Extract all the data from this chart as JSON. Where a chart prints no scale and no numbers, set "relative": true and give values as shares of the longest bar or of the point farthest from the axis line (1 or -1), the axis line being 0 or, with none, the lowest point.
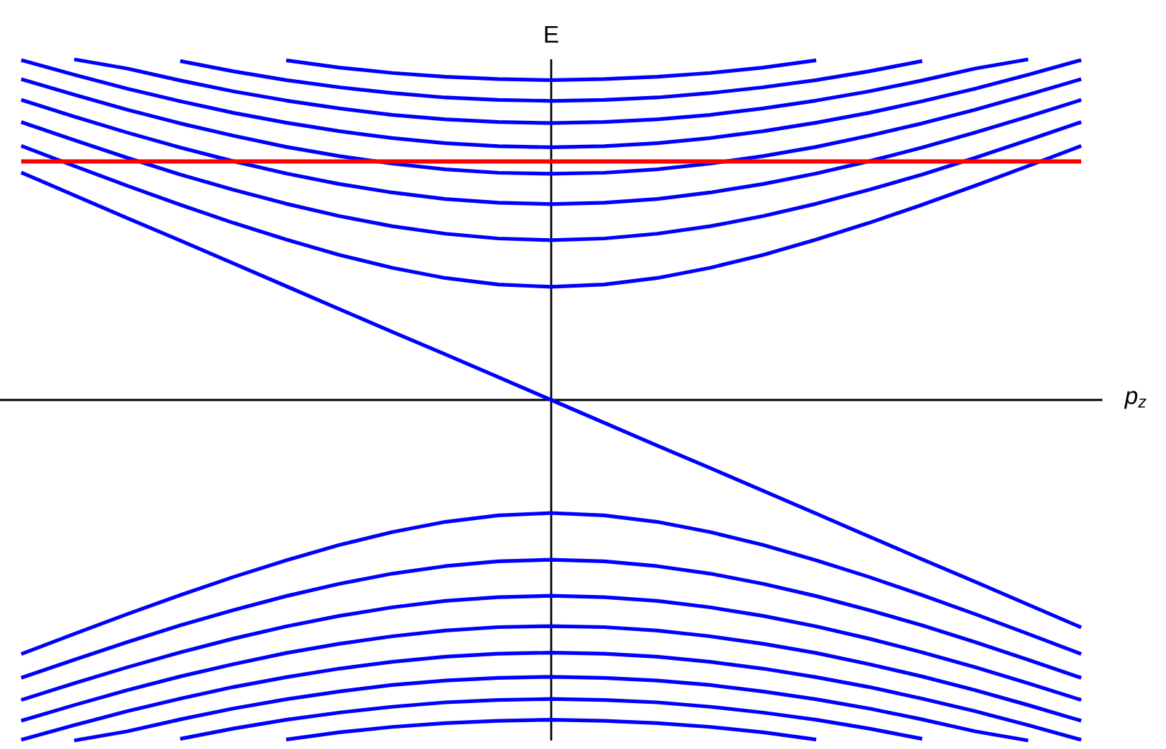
{
  "chart_data": {
    "type": "line",
    "relative": true,
    "xlabel": "p$_{z}$",
    "ylabel": "E",
    "categories": [
      null,
      null,
      null,
      null,
      null,
      null,
      null,
      null,
      null,
      null,
      null,
      null,
      null,
      null,
      null,
      null,
      null,
      null,
      null,
      null,
      null
    ],
    "series": [
      {
        "color": "#0000ff",
        "values": [
          0.746,
          0.687,
          0.629,
          0.573,
          0.52,
          0.471,
          0.426,
          0.388,
          0.358,
          0.339,
          0.332,
          0.339,
          0.358,
          0.388,
          0.426,
          0.471,
          0.52,
          0.573,
          0.629,
          0.687,
          0.746
        ]
      },
      {
        "color": "#0000ff",
        "values": [
          0.816,
          0.763,
          0.711,
          0.662,
          0.617,
          0.576,
          0.54,
          0.51,
          0.488,
          0.474,
          0.469,
          0.474,
          0.488,
          0.51,
          0.54,
          0.576,
          0.617,
          0.662,
          0.711,
          0.763,
          0.816
        ]
      },
      {
        "color": "#0000ff",
        "values": [
          0.881,
          0.832,
          0.785,
          0.741,
          0.701,
          0.665,
          0.634,
          0.609,
          0.59,
          0.579,
          0.575,
          0.579,
          0.59,
          0.609,
          0.634,
          0.665,
          0.701,
          0.741,
          0.785,
          0.832,
          0.881
        ]
      },
      {
        "color": "#0000ff",
        "values": [
          0.942,
          0.896,
          0.852,
          0.812,
          0.776,
          0.743,
          0.716,
          0.694,
          0.677,
          0.667,
          0.664,
          0.667,
          0.677,
          0.694,
          0.716,
          0.743,
          0.776,
          0.812,
          0.852,
          0.896,
          0.942
        ]
      },
      {
        "color": "#0000ff",
        "values": [
          0.998,
          0.955,
          0.914,
          0.877,
          0.843,
          0.814,
          0.789,
          0.769,
          0.754,
          0.745,
          0.742,
          0.745,
          0.754,
          0.769,
          0.789,
          0.814,
          0.843,
          0.877,
          0.914,
          0.955,
          0.998
        ]
      },
      {
        "color": "#0000ff",
        "values": [
          null,
          1,
          0.973,
          0.938,
          0.906,
          0.879,
          0.856,
          0.837,
          0.824,
          0.816,
          0.813,
          0.816,
          0.824,
          0.837,
          0.856,
          0.879,
          0.906,
          0.938,
          0.973,
          1,
          null
        ]
      },
      {
        "color": "#0000ff",
        "values": [
          null,
          null,
          null,
          0.995,
          0.965,
          0.939,
          0.918,
          0.901,
          0.888,
          0.881,
          0.878,
          0.881,
          0.888,
          0.901,
          0.918,
          0.939,
          0.965,
          0.995,
          null,
          null,
          null
        ]
      },
      {
        "color": "#0000ff",
        "values": [
          null,
          null,
          null,
          null,
          null,
          0.997,
          0.976,
          0.96,
          0.949,
          0.942,
          0.939,
          0.942,
          0.949,
          0.96,
          0.976,
          0.997,
          null,
          null,
          null,
          null,
          null
        ]
      },
      {
        "color": "#0000ff",
        "values": [
          0.668,
          0.601,
          0.534,
          0.468,
          0.401,
          0.334,
          0.267,
          0.2,
          0.134,
          0.067,
          0,
          -0.067,
          -0.134,
          -0.2,
          -0.267,
          -0.334,
          -0.401,
          -0.468,
          -0.534,
          -0.601,
          -0.668
        ]
      },
      {
        "color": "#0000ff",
        "values": [
          -0.746,
          -0.687,
          -0.629,
          -0.573,
          -0.52,
          -0.471,
          -0.426,
          -0.388,
          -0.358,
          -0.339,
          -0.332,
          -0.339,
          -0.358,
          -0.388,
          -0.426,
          -0.471,
          -0.52,
          -0.573,
          -0.629,
          -0.687,
          -0.746
        ]
      },
      {
        "color": "#0000ff",
        "values": [
          -0.816,
          -0.763,
          -0.711,
          -0.662,
          -0.617,
          -0.576,
          -0.54,
          -0.51,
          -0.488,
          -0.474,
          -0.469,
          -0.474,
          -0.488,
          -0.51,
          -0.54,
          -0.576,
          -0.617,
          -0.662,
          -0.711,
          -0.763,
          -0.816
        ]
      },
      {
        "color": "#0000ff",
        "values": [
          -0.881,
          -0.832,
          -0.785,
          -0.741,
          -0.701,
          -0.665,
          -0.634,
          -0.609,
          -0.59,
          -0.579,
          -0.575,
          -0.579,
          -0.59,
          -0.609,
          -0.634,
          -0.665,
          -0.701,
          -0.741,
          -0.785,
          -0.832,
          -0.881
        ]
      },
      {
        "color": "#0000ff",
        "values": [
          -0.942,
          -0.896,
          -0.852,
          -0.812,
          -0.776,
          -0.743,
          -0.716,
          -0.694,
          -0.677,
          -0.667,
          -0.664,
          -0.667,
          -0.677,
          -0.694,
          -0.716,
          -0.743,
          -0.776,
          -0.812,
          -0.852,
          -0.896,
          -0.942
        ]
      },
      {
        "color": "#0000ff",
        "values": [
          -0.998,
          -0.955,
          -0.914,
          -0.877,
          -0.843,
          -0.814,
          -0.789,
          -0.769,
          -0.754,
          -0.745,
          -0.742,
          -0.745,
          -0.754,
          -0.769,
          -0.789,
          -0.814,
          -0.843,
          -0.877,
          -0.914,
          -0.955,
          -0.998
        ]
      },
      {
        "color": "#0000ff",
        "values": [
          null,
          -1,
          -0.973,
          -0.938,
          -0.906,
          -0.879,
          -0.856,
          -0.837,
          -0.824,
          -0.816,
          -0.813,
          -0.816,
          -0.824,
          -0.837,
          -0.856,
          -0.879,
          -0.906,
          -0.938,
          -0.973,
          -1,
          null
        ]
      },
      {
        "color": "#0000ff",
        "values": [
          null,
          null,
          null,
          -0.995,
          -0.965,
          -0.939,
          -0.918,
          -0.901,
          -0.888,
          -0.881,
          -0.878,
          -0.881,
          -0.888,
          -0.901,
          -0.918,
          -0.939,
          -0.965,
          -0.995,
          null,
          null,
          null
        ]
      },
      {
        "color": "#0000ff",
        "values": [
          null,
          null,
          null,
          null,
          null,
          -0.997,
          -0.976,
          -0.96,
          -0.949,
          -0.942,
          -0.939,
          -0.942,
          -0.949,
          -0.96,
          -0.976,
          -0.997,
          null,
          null,
          null,
          null,
          null
        ]
      }
    ],
    "ref_lines": [
      {
        "axis": "y",
        "value": 0.7,
        "color": "#ff0000"
      }
    ]
  }
}
